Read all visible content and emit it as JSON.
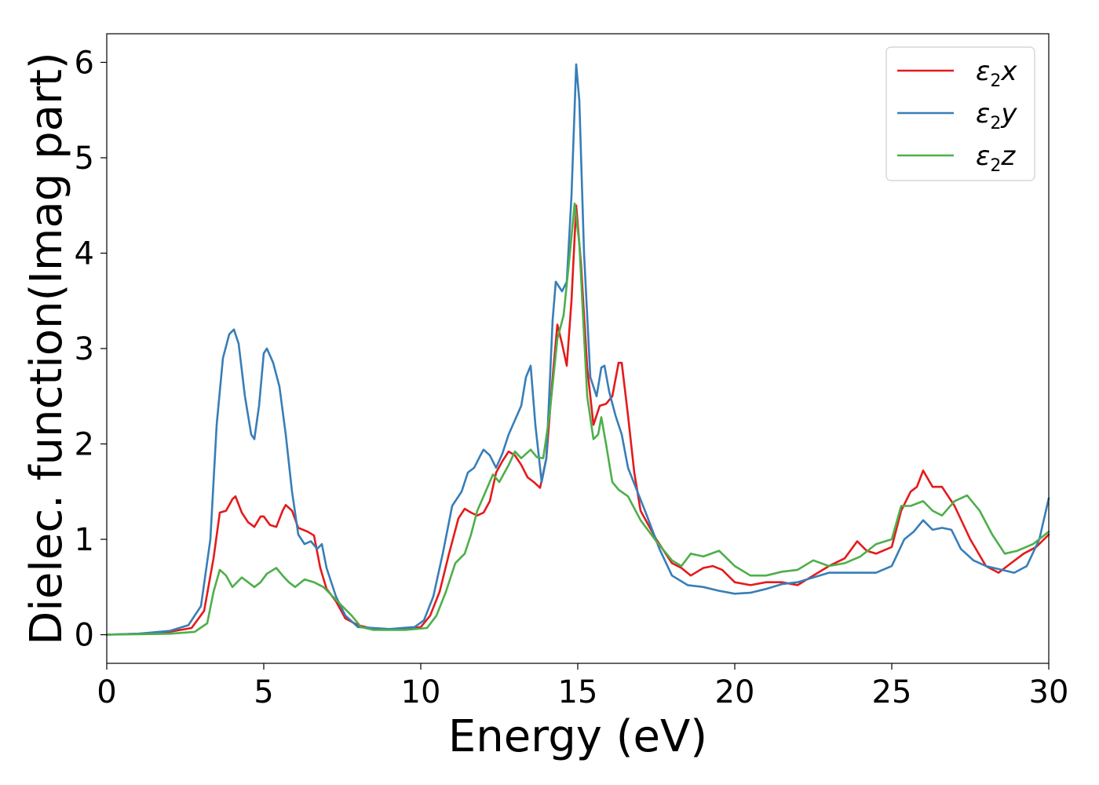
{
  "chart_data": {
    "type": "line",
    "title": "",
    "xlabel": "Energy (eV)",
    "ylabel": "Dielec. function(Imag part)",
    "xlim": [
      0,
      30
    ],
    "ylim": [
      -0.3,
      6.3
    ],
    "xticks": [
      0,
      5,
      10,
      15,
      20,
      25,
      30
    ],
    "yticks": [
      0,
      1,
      2,
      3,
      4,
      5,
      6
    ],
    "grid": false,
    "legend_position": "top-right",
    "series": [
      {
        "name_base": "ε",
        "name_sub": "2",
        "name_tail": "x",
        "color": "#e41a1c",
        "points": [
          [
            0,
            0
          ],
          [
            1,
            0.01
          ],
          [
            2,
            0.03
          ],
          [
            2.7,
            0.07
          ],
          [
            3.1,
            0.25
          ],
          [
            3.4,
            0.8
          ],
          [
            3.6,
            1.28
          ],
          [
            3.8,
            1.3
          ],
          [
            4.0,
            1.42
          ],
          [
            4.1,
            1.45
          ],
          [
            4.3,
            1.28
          ],
          [
            4.5,
            1.18
          ],
          [
            4.7,
            1.13
          ],
          [
            4.9,
            1.24
          ],
          [
            5.0,
            1.24
          ],
          [
            5.2,
            1.15
          ],
          [
            5.4,
            1.13
          ],
          [
            5.6,
            1.3
          ],
          [
            5.7,
            1.36
          ],
          [
            5.9,
            1.3
          ],
          [
            6.1,
            1.12
          ],
          [
            6.4,
            1.08
          ],
          [
            6.6,
            1.04
          ],
          [
            6.8,
            0.7
          ],
          [
            7.0,
            0.48
          ],
          [
            7.3,
            0.35
          ],
          [
            7.6,
            0.17
          ],
          [
            8.0,
            0.1
          ],
          [
            8.5,
            0.06
          ],
          [
            9.5,
            0.06
          ],
          [
            10,
            0.08
          ],
          [
            10.3,
            0.2
          ],
          [
            10.6,
            0.45
          ],
          [
            10.9,
            0.85
          ],
          [
            11.2,
            1.22
          ],
          [
            11.4,
            1.32
          ],
          [
            11.6,
            1.28
          ],
          [
            11.8,
            1.25
          ],
          [
            12.0,
            1.28
          ],
          [
            12.2,
            1.4
          ],
          [
            12.4,
            1.7
          ],
          [
            12.6,
            1.82
          ],
          [
            12.8,
            1.92
          ],
          [
            13.0,
            1.88
          ],
          [
            13.2,
            1.78
          ],
          [
            13.4,
            1.65
          ],
          [
            13.6,
            1.6
          ],
          [
            13.8,
            1.54
          ],
          [
            14.0,
            1.85
          ],
          [
            14.2,
            2.7
          ],
          [
            14.35,
            3.25
          ],
          [
            14.5,
            3.05
          ],
          [
            14.65,
            2.82
          ],
          [
            14.8,
            3.5
          ],
          [
            14.95,
            4.5
          ],
          [
            15.1,
            3.9
          ],
          [
            15.3,
            2.8
          ],
          [
            15.5,
            2.2
          ],
          [
            15.7,
            2.4
          ],
          [
            15.9,
            2.42
          ],
          [
            16.1,
            2.5
          ],
          [
            16.3,
            2.85
          ],
          [
            16.4,
            2.85
          ],
          [
            16.6,
            2.3
          ],
          [
            16.8,
            1.7
          ],
          [
            17.0,
            1.3
          ],
          [
            17.5,
            1.0
          ],
          [
            18.0,
            0.75
          ],
          [
            18.3,
            0.7
          ],
          [
            18.6,
            0.62
          ],
          [
            19.0,
            0.7
          ],
          [
            19.3,
            0.72
          ],
          [
            19.6,
            0.68
          ],
          [
            20.0,
            0.55
          ],
          [
            20.5,
            0.52
          ],
          [
            21.0,
            0.55
          ],
          [
            21.5,
            0.55
          ],
          [
            22.0,
            0.52
          ],
          [
            22.5,
            0.62
          ],
          [
            23.0,
            0.72
          ],
          [
            23.5,
            0.8
          ],
          [
            23.9,
            0.98
          ],
          [
            24.2,
            0.88
          ],
          [
            24.5,
            0.85
          ],
          [
            25.0,
            0.92
          ],
          [
            25.3,
            1.3
          ],
          [
            25.6,
            1.5
          ],
          [
            25.8,
            1.55
          ],
          [
            26.0,
            1.72
          ],
          [
            26.3,
            1.55
          ],
          [
            26.6,
            1.55
          ],
          [
            27.0,
            1.35
          ],
          [
            27.5,
            1.0
          ],
          [
            28.0,
            0.72
          ],
          [
            28.4,
            0.65
          ],
          [
            28.8,
            0.75
          ],
          [
            29.2,
            0.85
          ],
          [
            29.6,
            0.92
          ],
          [
            30,
            1.05
          ]
        ]
      },
      {
        "name_base": "ε",
        "name_sub": "2",
        "name_tail": "y",
        "color": "#377eb8",
        "points": [
          [
            0,
            0
          ],
          [
            1,
            0.01
          ],
          [
            2,
            0.04
          ],
          [
            2.6,
            0.1
          ],
          [
            3.0,
            0.3
          ],
          [
            3.3,
            1.0
          ],
          [
            3.5,
            2.2
          ],
          [
            3.7,
            2.9
          ],
          [
            3.9,
            3.15
          ],
          [
            4.05,
            3.2
          ],
          [
            4.2,
            3.05
          ],
          [
            4.4,
            2.5
          ],
          [
            4.6,
            2.1
          ],
          [
            4.7,
            2.05
          ],
          [
            4.85,
            2.4
          ],
          [
            5.0,
            2.95
          ],
          [
            5.1,
            3.0
          ],
          [
            5.3,
            2.85
          ],
          [
            5.5,
            2.6
          ],
          [
            5.7,
            2.1
          ],
          [
            5.9,
            1.5
          ],
          [
            6.1,
            1.05
          ],
          [
            6.3,
            0.95
          ],
          [
            6.5,
            0.98
          ],
          [
            6.7,
            0.9
          ],
          [
            6.85,
            0.95
          ],
          [
            7.0,
            0.7
          ],
          [
            7.3,
            0.4
          ],
          [
            7.6,
            0.2
          ],
          [
            8.0,
            0.08
          ],
          [
            9.0,
            0.06
          ],
          [
            9.8,
            0.08
          ],
          [
            10.1,
            0.15
          ],
          [
            10.4,
            0.4
          ],
          [
            10.7,
            0.85
          ],
          [
            11.0,
            1.35
          ],
          [
            11.3,
            1.5
          ],
          [
            11.5,
            1.7
          ],
          [
            11.7,
            1.75
          ],
          [
            11.9,
            1.88
          ],
          [
            12.0,
            1.94
          ],
          [
            12.2,
            1.88
          ],
          [
            12.4,
            1.75
          ],
          [
            12.6,
            1.9
          ],
          [
            12.8,
            2.1
          ],
          [
            13.0,
            2.25
          ],
          [
            13.2,
            2.4
          ],
          [
            13.35,
            2.7
          ],
          [
            13.5,
            2.82
          ],
          [
            13.65,
            2.2
          ],
          [
            13.85,
            1.6
          ],
          [
            14.0,
            1.85
          ],
          [
            14.2,
            3.3
          ],
          [
            14.3,
            3.7
          ],
          [
            14.5,
            3.6
          ],
          [
            14.65,
            3.7
          ],
          [
            14.8,
            4.6
          ],
          [
            14.95,
            5.98
          ],
          [
            15.05,
            5.6
          ],
          [
            15.2,
            4.0
          ],
          [
            15.4,
            2.7
          ],
          [
            15.6,
            2.5
          ],
          [
            15.75,
            2.8
          ],
          [
            15.85,
            2.82
          ],
          [
            16.0,
            2.55
          ],
          [
            16.2,
            2.3
          ],
          [
            16.4,
            2.1
          ],
          [
            16.6,
            1.75
          ],
          [
            16.9,
            1.5
          ],
          [
            17.2,
            1.25
          ],
          [
            17.6,
            0.9
          ],
          [
            18.0,
            0.62
          ],
          [
            18.5,
            0.52
          ],
          [
            19.0,
            0.5
          ],
          [
            19.5,
            0.46
          ],
          [
            20.0,
            0.43
          ],
          [
            20.5,
            0.44
          ],
          [
            21.0,
            0.48
          ],
          [
            21.5,
            0.53
          ],
          [
            22.0,
            0.55
          ],
          [
            22.5,
            0.6
          ],
          [
            23.0,
            0.65
          ],
          [
            23.5,
            0.65
          ],
          [
            24.0,
            0.65
          ],
          [
            24.5,
            0.65
          ],
          [
            25.0,
            0.72
          ],
          [
            25.4,
            1.0
          ],
          [
            25.7,
            1.08
          ],
          [
            26.0,
            1.2
          ],
          [
            26.3,
            1.1
          ],
          [
            26.6,
            1.12
          ],
          [
            26.9,
            1.1
          ],
          [
            27.2,
            0.9
          ],
          [
            27.6,
            0.78
          ],
          [
            28.0,
            0.72
          ],
          [
            28.5,
            0.68
          ],
          [
            28.9,
            0.65
          ],
          [
            29.3,
            0.72
          ],
          [
            29.7,
            1.0
          ],
          [
            30,
            1.43
          ]
        ]
      },
      {
        "name_base": "ε",
        "name_sub": "2",
        "name_tail": "z",
        "color": "#4daf4a",
        "points": [
          [
            0,
            0
          ],
          [
            1,
            0.005
          ],
          [
            2,
            0.01
          ],
          [
            2.8,
            0.03
          ],
          [
            3.2,
            0.12
          ],
          [
            3.4,
            0.45
          ],
          [
            3.6,
            0.68
          ],
          [
            3.8,
            0.62
          ],
          [
            4.0,
            0.5
          ],
          [
            4.3,
            0.6
          ],
          [
            4.5,
            0.55
          ],
          [
            4.7,
            0.5
          ],
          [
            4.9,
            0.55
          ],
          [
            5.1,
            0.64
          ],
          [
            5.4,
            0.7
          ],
          [
            5.6,
            0.62
          ],
          [
            5.8,
            0.55
          ],
          [
            6.0,
            0.5
          ],
          [
            6.3,
            0.58
          ],
          [
            6.6,
            0.55
          ],
          [
            6.9,
            0.5
          ],
          [
            7.2,
            0.4
          ],
          [
            7.5,
            0.3
          ],
          [
            7.8,
            0.2
          ],
          [
            8.1,
            0.08
          ],
          [
            8.5,
            0.05
          ],
          [
            9.5,
            0.05
          ],
          [
            10.2,
            0.07
          ],
          [
            10.5,
            0.2
          ],
          [
            10.8,
            0.45
          ],
          [
            11.1,
            0.75
          ],
          [
            11.4,
            0.85
          ],
          [
            11.6,
            1.05
          ],
          [
            11.8,
            1.3
          ],
          [
            12.0,
            1.45
          ],
          [
            12.3,
            1.68
          ],
          [
            12.5,
            1.6
          ],
          [
            12.8,
            1.78
          ],
          [
            13.0,
            1.92
          ],
          [
            13.2,
            1.85
          ],
          [
            13.5,
            1.94
          ],
          [
            13.7,
            1.86
          ],
          [
            13.9,
            1.85
          ],
          [
            14.1,
            2.3
          ],
          [
            14.35,
            3.1
          ],
          [
            14.55,
            3.35
          ],
          [
            14.75,
            4.0
          ],
          [
            14.9,
            4.52
          ],
          [
            15.05,
            4.1
          ],
          [
            15.3,
            2.5
          ],
          [
            15.5,
            2.05
          ],
          [
            15.65,
            2.1
          ],
          [
            15.75,
            2.28
          ],
          [
            15.9,
            2.0
          ],
          [
            16.1,
            1.6
          ],
          [
            16.3,
            1.52
          ],
          [
            16.6,
            1.45
          ],
          [
            17.0,
            1.2
          ],
          [
            17.5,
            0.98
          ],
          [
            18.0,
            0.78
          ],
          [
            18.3,
            0.72
          ],
          [
            18.6,
            0.85
          ],
          [
            19.0,
            0.82
          ],
          [
            19.5,
            0.88
          ],
          [
            20.0,
            0.72
          ],
          [
            20.5,
            0.62
          ],
          [
            21.0,
            0.62
          ],
          [
            21.5,
            0.66
          ],
          [
            22.0,
            0.68
          ],
          [
            22.5,
            0.78
          ],
          [
            23.0,
            0.72
          ],
          [
            23.5,
            0.75
          ],
          [
            24.0,
            0.82
          ],
          [
            24.5,
            0.95
          ],
          [
            25.0,
            1.0
          ],
          [
            25.3,
            1.35
          ],
          [
            25.6,
            1.35
          ],
          [
            26.0,
            1.4
          ],
          [
            26.3,
            1.3
          ],
          [
            26.6,
            1.25
          ],
          [
            27.0,
            1.4
          ],
          [
            27.4,
            1.46
          ],
          [
            27.8,
            1.3
          ],
          [
            28.2,
            1.05
          ],
          [
            28.6,
            0.85
          ],
          [
            29.0,
            0.88
          ],
          [
            29.5,
            0.95
          ],
          [
            30,
            1.08
          ]
        ]
      }
    ]
  }
}
